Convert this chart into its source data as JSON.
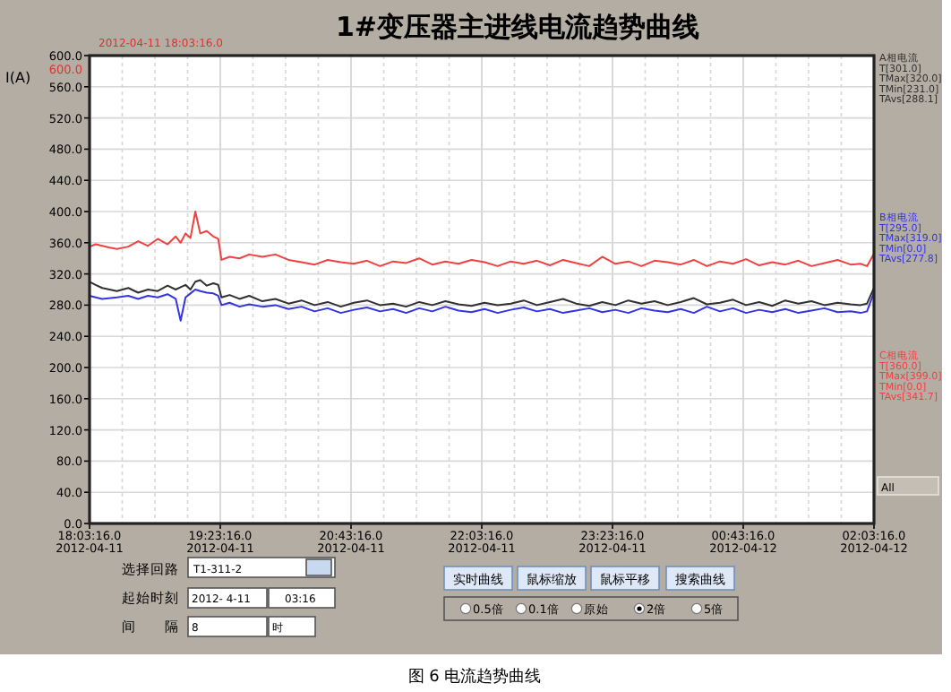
{
  "chart_data": {
    "type": "line",
    "title": "1#变压器主进线电流趋势曲线",
    "ylabel": "I(A)",
    "x": [
      "2012-04-11T18:03:16",
      "2012-04-11T18:07",
      "2012-04-11T18:11",
      "2012-04-11T18:15",
      "2012-04-11T18:20",
      "2012-04-11T18:27",
      "2012-04-11T18:33",
      "2012-04-11T18:39",
      "2012-04-11T18:45",
      "2012-04-11T18:51",
      "2012-04-11T18:56",
      "2012-04-11T18:59",
      "2012-04-11T19:02",
      "2012-04-11T19:05",
      "2012-04-11T19:08",
      "2012-04-11T19:11",
      "2012-04-11T19:15",
      "2012-04-11T19:19",
      "2012-04-11T19:22",
      "2012-04-11T19:24",
      "2012-04-11T19:29",
      "2012-04-11T19:35",
      "2012-04-11T19:41",
      "2012-04-11T19:49",
      "2012-04-11T19:57",
      "2012-04-11T20:05",
      "2012-04-11T20:13",
      "2012-04-11T20:21",
      "2012-04-11T20:29",
      "2012-04-11T20:37",
      "2012-04-11T20:45",
      "2012-04-11T20:53",
      "2012-04-11T21:01",
      "2012-04-11T21:09",
      "2012-04-11T21:17",
      "2012-04-11T21:25",
      "2012-04-11T21:33",
      "2012-04-11T21:41",
      "2012-04-11T21:49",
      "2012-04-11T21:57",
      "2012-04-11T22:05",
      "2012-04-11T22:13",
      "2012-04-11T22:21",
      "2012-04-11T22:29",
      "2012-04-11T22:37",
      "2012-04-11T22:45",
      "2012-04-11T22:53",
      "2012-04-11T23:01",
      "2012-04-11T23:09",
      "2012-04-11T23:17",
      "2012-04-11T23:25",
      "2012-04-11T23:33",
      "2012-04-11T23:41",
      "2012-04-11T23:49",
      "2012-04-11T23:57",
      "2012-04-12T00:05",
      "2012-04-12T00:13",
      "2012-04-12T00:21",
      "2012-04-12T00:29",
      "2012-04-12T00:37",
      "2012-04-12T00:45",
      "2012-04-12T00:53",
      "2012-04-12T01:01",
      "2012-04-12T01:09",
      "2012-04-12T01:17",
      "2012-04-12T01:25",
      "2012-04-12T01:33",
      "2012-04-12T01:41",
      "2012-04-12T01:49",
      "2012-04-12T01:55",
      "2012-04-12T01:59",
      "2012-04-12T02:03"
    ],
    "series": [
      {
        "name": "A相电流\nT[301.0]\nTMax[320.0]\nTMin[231.0]\nTAvs[288.1]",
        "color": "#303030",
        "values": [
          310,
          306,
          302,
          null,
          298,
          302,
          296,
          300,
          298,
          305,
          300,
          303,
          306,
          300,
          310,
          312,
          305,
          308,
          306,
          290,
          293,
          288,
          292,
          285,
          288,
          282,
          286,
          280,
          284,
          278,
          283,
          286,
          280,
          282,
          278,
          284,
          280,
          285,
          281,
          279,
          283,
          280,
          282,
          286,
          280,
          284,
          288,
          282,
          279,
          284,
          280,
          286,
          282,
          285,
          280,
          284,
          289,
          281,
          283,
          287,
          280,
          284,
          279,
          286,
          282,
          285,
          280,
          283,
          281,
          280,
          282,
          301
        ]
      },
      {
        "name": "B相电流\nT[295.0]\nTMax[319.0]\nTMin[0.0]\nTAvs[277.8]",
        "color": "#3434e0",
        "values": [
          292,
          290,
          288,
          null,
          290,
          292,
          288,
          292,
          290,
          294,
          288,
          260,
          290,
          295,
          300,
          298,
          296,
          295,
          292,
          280,
          283,
          278,
          281,
          278,
          280,
          275,
          278,
          272,
          276,
          270,
          274,
          277,
          272,
          275,
          270,
          276,
          272,
          278,
          273,
          271,
          275,
          270,
          274,
          277,
          272,
          275,
          270,
          273,
          276,
          271,
          274,
          270,
          276,
          273,
          271,
          275,
          270,
          278,
          272,
          276,
          270,
          274,
          271,
          275,
          270,
          273,
          276,
          271,
          272,
          270,
          272,
          295
        ]
      },
      {
        "name": "C相电流\nT[360.0]\nTMax[399.0]\nTMin[0.0]\nTAvs[341.7]",
        "color": "#f04040",
        "values": [
          355,
          358,
          356,
          354,
          352,
          355,
          362,
          356,
          365,
          358,
          368,
          360,
          372,
          366,
          400,
          372,
          375,
          368,
          365,
          338,
          342,
          340,
          345,
          342,
          345,
          338,
          335,
          332,
          338,
          335,
          333,
          337,
          330,
          336,
          334,
          340,
          332,
          336,
          333,
          338,
          335,
          330,
          336,
          333,
          337,
          331,
          338,
          334,
          330,
          342,
          333,
          336,
          330,
          337,
          335,
          332,
          338,
          330,
          336,
          333,
          339,
          331,
          335,
          332,
          337,
          330,
          334,
          338,
          332,
          333,
          330,
          345
        ]
      }
    ],
    "ylim": [
      0,
      600
    ],
    "yticks": [
      {
        "value": 0,
        "label": "0.0"
      },
      {
        "value": 40,
        "label": "40.0"
      },
      {
        "value": 80,
        "label": "80.0"
      },
      {
        "value": 120,
        "label": "120.0"
      },
      {
        "value": 160,
        "label": "160.0"
      },
      {
        "value": 200,
        "label": "200.0"
      },
      {
        "value": 240,
        "label": "240.0"
      },
      {
        "value": 280,
        "label": "280.0"
      },
      {
        "value": 320,
        "label": "320.0"
      },
      {
        "value": 360,
        "label": "360.0"
      },
      {
        "value": 400,
        "label": "400.0"
      },
      {
        "value": 440,
        "label": "440.0"
      },
      {
        "value": 480,
        "label": "480.0"
      },
      {
        "value": 520,
        "label": "520.0"
      },
      {
        "value": 560,
        "label": "560.0"
      },
      {
        "value": 600,
        "label": "600.0"
      }
    ],
    "xlim": [
      "2012-04-11T18:03:16",
      "2012-04-12T02:03:16"
    ],
    "xticks": [
      {
        "value": "2012-04-11T18:03:16",
        "label": "18:03:16.0\n2012-04-11"
      },
      {
        "value": "2012-04-11T19:23:16",
        "label": "19:23:16.0\n2012-04-11"
      },
      {
        "value": "2012-04-11T20:43:16",
        "label": "20:43:16.0\n2012-04-11"
      },
      {
        "value": "2012-04-11T22:03:16",
        "label": "22:03:16.0\n2012-04-11"
      },
      {
        "value": "2012-04-11T23:23:16",
        "label": "23:23:16.0\n2012-04-11"
      },
      {
        "value": "2012-04-12T00:43:16",
        "label": "00:43:16.0\n2012-04-12"
      },
      {
        "value": "2012-04-12T02:03:16",
        "label": "02:03:16.0\n2012-04-12"
      }
    ],
    "grid": true,
    "legend": "right",
    "marker": "none",
    "line_style": "solid",
    "annotations": [
      "2012-04-11 18:03:16.0",
      "600.0",
      "All",
      "选择回路",
      "T1-311-2",
      "起始时刻",
      "2012- 4-11",
      "03:16",
      "间　　隔",
      "8",
      "时",
      "实时曲线",
      "鼠标缩放",
      "鼠标平移",
      "搜索曲线",
      "0.5倍",
      "0.1倍",
      "原始",
      "2倍",
      "5倍",
      "图 6  电流趋势曲线"
    ]
  }
}
